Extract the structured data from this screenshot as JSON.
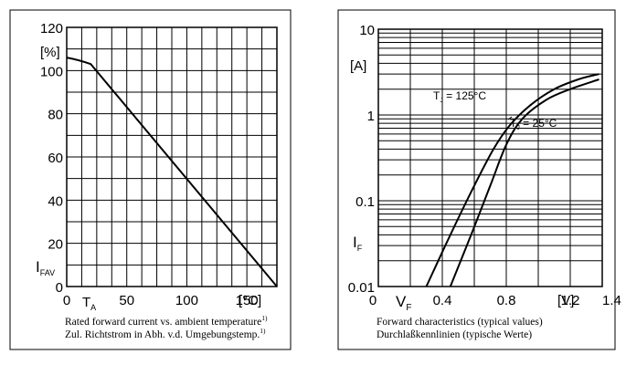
{
  "chart_data": [
    {
      "type": "line",
      "x": [
        0,
        10,
        20,
        175
      ],
      "series": [
        {
          "name": "",
          "values": [
            106,
            105,
            103,
            0
          ]
        }
      ],
      "xlim": [
        0,
        175
      ],
      "ylim": [
        0,
        120
      ],
      "xticks": [
        "0",
        "50",
        "100",
        "150"
      ],
      "yticks": [
        "0",
        "20",
        "40",
        "60",
        "80",
        "100",
        "120"
      ],
      "x_unit_label": "[°C]",
      "y_unit_label": "[%]",
      "x_symbol": "T",
      "x_symbol_sub": "A",
      "y_symbol": "I",
      "y_symbol_sub": "FAV",
      "caption_line1": "Rated forward current vs. ambient temperature",
      "caption_line1_sup": "1)",
      "caption_line2": "Zul. Richtstrom in Abh. v.d. Umgebungstemp.",
      "caption_line2_sup": "1)",
      "grid": true,
      "scale": "linear"
    },
    {
      "type": "line",
      "x_scale": "linear",
      "y_scale": "log",
      "xlim": [
        0,
        1.4
      ],
      "ylim": [
        0.01,
        10
      ],
      "xticks": [
        "0",
        "0.4",
        "0.8",
        "1.2",
        "1.4"
      ],
      "yticks": [
        "0.01",
        "0.1",
        "1",
        "10"
      ],
      "x_unit_label": "[V]",
      "y_unit_label": "[A]",
      "x_symbol": "V",
      "x_symbol_sub": "F",
      "y_symbol": "I",
      "y_symbol_sub": "F",
      "series": [
        {
          "name": "T_J = 125°C",
          "name_main": "T",
          "name_sub": "J",
          "name_rest": " = 125°C",
          "points": [
            [
              0.3,
              0.01
            ],
            [
              0.45,
              0.04
            ],
            [
              0.6,
              0.15
            ],
            [
              0.72,
              0.4
            ],
            [
              0.82,
              0.75
            ],
            [
              0.95,
              1.3
            ],
            [
              1.1,
              2.0
            ],
            [
              1.25,
              2.6
            ],
            [
              1.38,
              3.0
            ]
          ]
        },
        {
          "name": "T_J = 25°C",
          "name_main": "T",
          "name_sub": "J",
          "name_rest": " = 25°C",
          "points": [
            [
              0.45,
              0.01
            ],
            [
              0.58,
              0.04
            ],
            [
              0.7,
              0.15
            ],
            [
              0.8,
              0.45
            ],
            [
              0.9,
              0.9
            ],
            [
              1.05,
              1.5
            ],
            [
              1.2,
              2.0
            ],
            [
              1.38,
              2.6
            ]
          ]
        }
      ],
      "caption_line1": "Forward characteristics (typical values)",
      "caption_line2": "Durchlaßkennlinien (typische Werte)",
      "grid": true
    }
  ]
}
